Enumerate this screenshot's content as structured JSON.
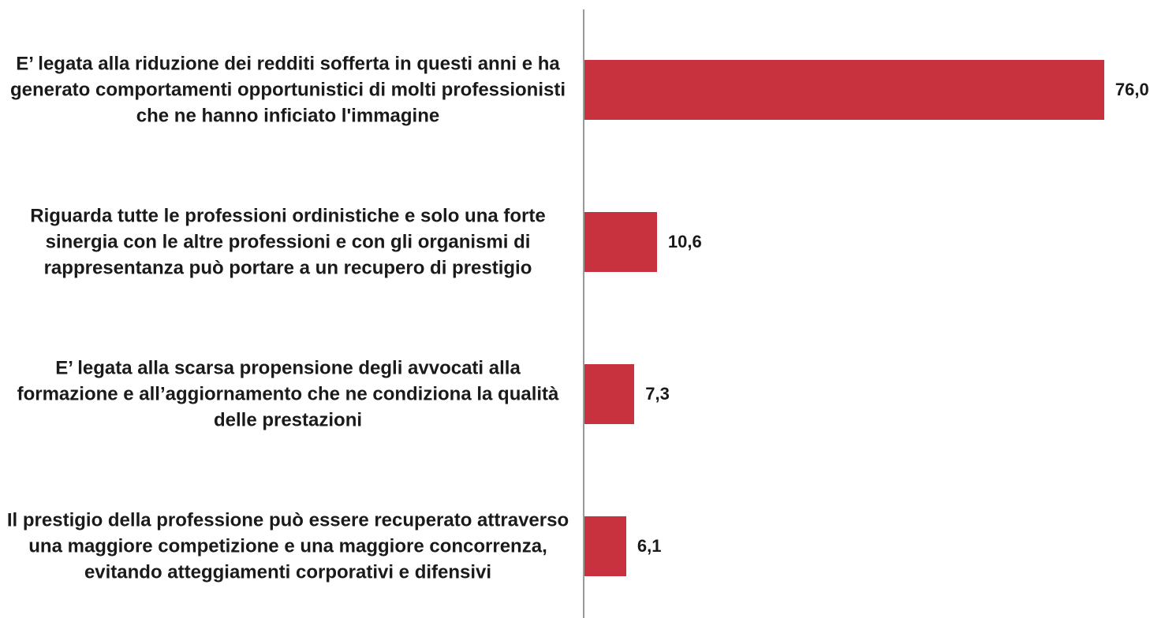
{
  "chart_data": {
    "type": "hbar",
    "categories": [
      "E’ legata alla riduzione dei redditi sofferta in questi anni e ha generato comportamenti opportunistici di molti professionisti che  ne hanno inficiato l'immagine",
      "Riguarda tutte le professioni ordinistiche e solo una forte sinergia con le altre professioni  e con gli organismi di rappresentanza può portare a un recupero di prestigio",
      "E’ legata alla scarsa propensione degli avvocati alla formazione e all’aggiornamento che ne condiziona la qualità delle prestazioni",
      "Il prestigio della professione può essere recuperato attraverso una maggiore competizione e una maggiore concorrenza, evitando atteggiamenti corporativi e difensivi"
    ],
    "values": [
      76.0,
      10.6,
      7.3,
      6.1
    ],
    "value_labels": [
      "76,0",
      "10,6",
      "7,3",
      "6,1"
    ],
    "color": "#c8323f"
  }
}
